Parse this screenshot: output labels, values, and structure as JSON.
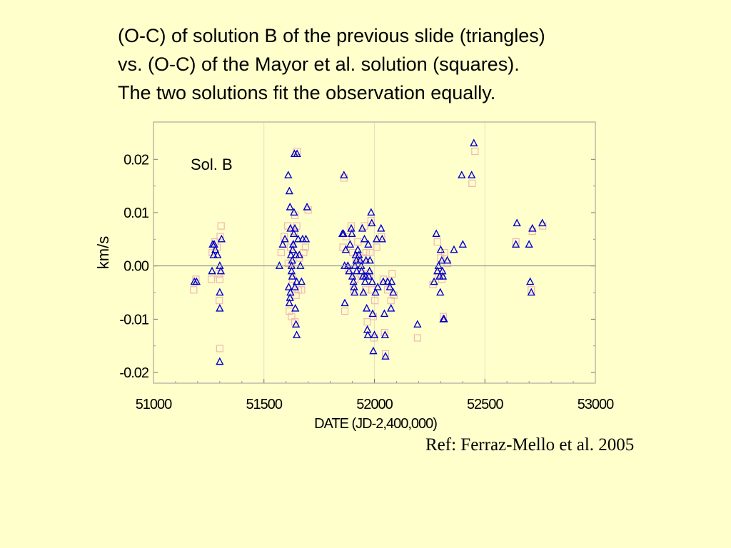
{
  "slide": {
    "title_lines": [
      "(O-C) of solution B of the previous slide (triangles)",
      "vs. (O-C) of the Mayor et al. solution (squares).",
      "The two solutions fit the observation equally."
    ],
    "reference": "Ref: Ferraz-Mello et al. 2005",
    "background_color": "#FFFFCC"
  },
  "chart_data": {
    "type": "scatter",
    "annotation": "Sol. B",
    "xlabel": "DATE (JD-2,400,000)",
    "ylabel": "km/s",
    "xlim": [
      51000,
      53000
    ],
    "ylim": [
      -0.022,
      0.027
    ],
    "xticks": [
      "51000",
      "51500",
      "52000",
      "52500",
      "53000"
    ],
    "yticks": [
      "0.02",
      "0.01",
      "0.00",
      "-0.01",
      "-0.02"
    ],
    "zero_line": true,
    "series": [
      {
        "marker": "triangle",
        "color": "#0000CC",
        "points": [
          [
            51185,
            -0.003
          ],
          [
            51195,
            -0.003
          ],
          [
            51265,
            -0.001
          ],
          [
            51268,
            0.004
          ],
          [
            51272,
            0.002
          ],
          [
            51275,
            0.004
          ],
          [
            51280,
            0.003
          ],
          [
            51290,
            0.002
          ],
          [
            51300,
            0.0
          ],
          [
            51305,
            -0.001
          ],
          [
            51308,
            0.005
          ],
          [
            51300,
            -0.005
          ],
          [
            51300,
            -0.008
          ],
          [
            51300,
            -0.018
          ],
          [
            51570,
            0.0
          ],
          [
            51585,
            0.004
          ],
          [
            51595,
            0.005
          ],
          [
            51610,
            0.017
          ],
          [
            51615,
            0.014
          ],
          [
            51618,
            0.011
          ],
          [
            51620,
            0.007
          ],
          [
            51622,
            0.002
          ],
          [
            51625,
            -0.001
          ],
          [
            51628,
            -0.002
          ],
          [
            51630,
            0.003
          ],
          [
            51632,
            0.004
          ],
          [
            51635,
            0.006
          ],
          [
            51638,
            0.021
          ],
          [
            51640,
            -0.004
          ],
          [
            51642,
            -0.008
          ],
          [
            51645,
            -0.011
          ],
          [
            51648,
            -0.013
          ],
          [
            51650,
            0.021
          ],
          [
            51655,
            0.005
          ],
          [
            51660,
            0.002
          ],
          [
            51665,
            0.0
          ],
          [
            51670,
            -0.003
          ],
          [
            51675,
            0.005
          ],
          [
            51690,
            0.005
          ],
          [
            51695,
            0.011
          ],
          [
            51612,
            -0.004
          ],
          [
            51615,
            -0.007
          ],
          [
            51618,
            -0.006
          ],
          [
            51620,
            -0.005
          ],
          [
            51625,
            0.0
          ],
          [
            51628,
            0.001
          ],
          [
            51633,
            0.004
          ],
          [
            51636,
            0.01
          ],
          [
            51640,
            0.007
          ],
          [
            51645,
            0.002
          ],
          [
            51648,
            -0.003
          ],
          [
            51855,
            0.006
          ],
          [
            51860,
            0.006
          ],
          [
            51862,
            0.017
          ],
          [
            51865,
            0.0
          ],
          [
            51866,
            -0.007
          ],
          [
            51870,
            0.003
          ],
          [
            51880,
            0.0
          ],
          [
            51885,
            -0.001
          ],
          [
            51890,
            0.004
          ],
          [
            51895,
            0.007
          ],
          [
            51898,
            0.006
          ],
          [
            51900,
            -0.002
          ],
          [
            51905,
            -0.003
          ],
          [
            51908,
            -0.004
          ],
          [
            51910,
            -0.005
          ],
          [
            51912,
            0.0
          ],
          [
            51915,
            0.002
          ],
          [
            51918,
            0.001
          ],
          [
            51920,
            -0.001
          ],
          [
            51925,
            0.003
          ],
          [
            51930,
            0.002
          ],
          [
            51935,
            0.001
          ],
          [
            51940,
            0.0
          ],
          [
            51942,
            -0.001
          ],
          [
            51945,
            0.007
          ],
          [
            51948,
            -0.002
          ],
          [
            51950,
            -0.005
          ],
          [
            51955,
            0.005
          ],
          [
            51958,
            -0.003
          ],
          [
            51960,
            -0.002
          ],
          [
            51962,
            0.001
          ],
          [
            51965,
            -0.008
          ],
          [
            51968,
            -0.012
          ],
          [
            51970,
            -0.013
          ],
          [
            51972,
            0.004
          ],
          [
            51975,
            -0.002
          ],
          [
            51978,
            -0.001
          ],
          [
            51980,
            0.001
          ],
          [
            51985,
            0.01
          ],
          [
            51988,
            0.008
          ],
          [
            51990,
            -0.003
          ],
          [
            51992,
            -0.009
          ],
          [
            51995,
            -0.016
          ],
          [
            52000,
            -0.013
          ],
          [
            52005,
            -0.005
          ],
          [
            52010,
            0.005
          ],
          [
            52015,
            -0.004
          ],
          [
            52030,
            0.007
          ],
          [
            52035,
            0.005
          ],
          [
            52040,
            -0.003
          ],
          [
            52045,
            -0.009
          ],
          [
            52048,
            -0.013
          ],
          [
            52050,
            -0.017
          ],
          [
            52060,
            -0.003
          ],
          [
            52070,
            -0.004
          ],
          [
            52075,
            -0.008
          ],
          [
            52078,
            -0.003
          ],
          [
            52085,
            -0.005
          ],
          [
            52195,
            -0.011
          ],
          [
            52270,
            -0.003
          ],
          [
            52280,
            0.006
          ],
          [
            52285,
            -0.001
          ],
          [
            52290,
            0.0
          ],
          [
            52295,
            -0.002
          ],
          [
            52298,
            -0.005
          ],
          [
            52300,
            0.003
          ],
          [
            52305,
            0.001
          ],
          [
            52308,
            -0.001
          ],
          [
            52310,
            -0.002
          ],
          [
            52312,
            -0.01
          ],
          [
            52315,
            -0.01
          ],
          [
            52330,
            0.001
          ],
          [
            52360,
            0.003
          ],
          [
            52400,
            0.004
          ],
          [
            52395,
            0.017
          ],
          [
            52440,
            0.017
          ],
          [
            52450,
            0.023
          ],
          [
            52640,
            0.004
          ],
          [
            52645,
            0.008
          ],
          [
            52700,
            0.004
          ],
          [
            52705,
            -0.003
          ],
          [
            52710,
            -0.005
          ],
          [
            52715,
            0.007
          ],
          [
            52760,
            0.008
          ]
        ]
      },
      {
        "marker": "square",
        "color": "#F0B8B0",
        "points": [
          [
            51182,
            -0.0045
          ],
          [
            51192,
            -0.0025
          ],
          [
            51262,
            -0.0025
          ],
          [
            51266,
            0.0025
          ],
          [
            51278,
            0.0045
          ],
          [
            51288,
            0.0035
          ],
          [
            51296,
            -0.0015
          ],
          [
            51302,
            0.0055
          ],
          [
            51306,
            0.0075
          ],
          [
            51298,
            -0.0065
          ],
          [
            51300,
            -0.0155
          ],
          [
            51300,
            -0.0025
          ],
          [
            51578,
            0.0025
          ],
          [
            51592,
            0.0055
          ],
          [
            51608,
            0.0075
          ],
          [
            51620,
            0.0035
          ],
          [
            51624,
            0.0005
          ],
          [
            51630,
            -0.0025
          ],
          [
            51636,
            0.0065
          ],
          [
            51640,
            0.0095
          ],
          [
            51645,
            -0.0055
          ],
          [
            51650,
            0.0215
          ],
          [
            51655,
            -0.0045
          ],
          [
            51660,
            0.0015
          ],
          [
            51670,
            -0.0045
          ],
          [
            51680,
            0.0025
          ],
          [
            51688,
            0.0035
          ],
          [
            51700,
            0.0105
          ],
          [
            51615,
            -0.0085
          ],
          [
            51625,
            -0.0095
          ],
          [
            51640,
            -0.0105
          ],
          [
            51648,
            0.0075
          ],
          [
            51610,
            0.0005
          ],
          [
            51858,
            0.0035
          ],
          [
            51862,
            0.0165
          ],
          [
            51866,
            -0.0085
          ],
          [
            51872,
            0.0055
          ],
          [
            51882,
            -0.0005
          ],
          [
            51895,
            0.0075
          ],
          [
            51902,
            0.0025
          ],
          [
            51905,
            -0.0045
          ],
          [
            51912,
            -0.0025
          ],
          [
            51918,
            0.0015
          ],
          [
            51925,
            0.0045
          ],
          [
            51932,
            0.0005
          ],
          [
            51940,
            -0.0015
          ],
          [
            51948,
            0.0015
          ],
          [
            51955,
            0.0075
          ],
          [
            51960,
            -0.0045
          ],
          [
            51962,
            0.0025
          ],
          [
            51968,
            -0.0105
          ],
          [
            51975,
            -0.0015
          ],
          [
            51980,
            0.0025
          ],
          [
            51985,
            0.0085
          ],
          [
            51990,
            -0.0045
          ],
          [
            51995,
            -0.0095
          ],
          [
            51998,
            -0.0135
          ],
          [
            52002,
            -0.0065
          ],
          [
            52010,
            0.0035
          ],
          [
            52032,
            0.0055
          ],
          [
            52040,
            -0.0025
          ],
          [
            52046,
            -0.0125
          ],
          [
            52050,
            -0.0165
          ],
          [
            52060,
            -0.0045
          ],
          [
            52075,
            -0.0065
          ],
          [
            52080,
            -0.0015
          ],
          [
            52088,
            -0.0055
          ],
          [
            52195,
            -0.0135
          ],
          [
            52265,
            -0.0035
          ],
          [
            52285,
            0.0045
          ],
          [
            52292,
            -0.0015
          ],
          [
            52300,
            0.0015
          ],
          [
            52305,
            -0.0025
          ],
          [
            52312,
            -0.0095
          ],
          [
            52318,
            0.0025
          ],
          [
            52330,
            0.0005
          ],
          [
            52442,
            0.0155
          ],
          [
            52455,
            0.0215
          ],
          [
            52640,
            0.0045
          ],
          [
            52710,
            -0.0045
          ],
          [
            52715,
            0.0065
          ],
          [
            52762,
            0.0075
          ]
        ]
      }
    ]
  }
}
